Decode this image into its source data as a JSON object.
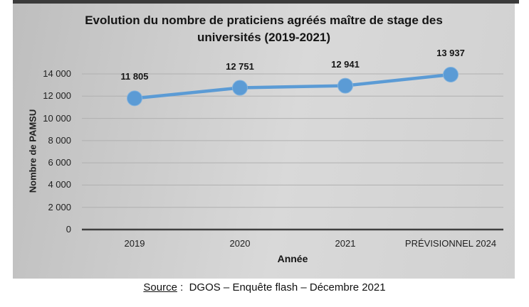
{
  "chart_data": {
    "type": "line",
    "title": "Evolution du nombre de praticiens agréés maître de stage des universités (2019-2021)",
    "categories": [
      "2019",
      "2020",
      "2021",
      "PRÉVISIONNEL 2024"
    ],
    "values": [
      11805,
      12751,
      12941,
      13937
    ],
    "data_labels": [
      "11 805",
      "12 751",
      "12 941",
      "13 937"
    ],
    "xlabel": "Année",
    "ylabel": "Nombre de PAMSU",
    "ylim": [
      0,
      14000
    ],
    "ytick_step": 2000,
    "ytick_labels": [
      "0",
      "2 000",
      "4 000",
      "6 000",
      "8 000",
      "10 000",
      "12 000",
      "14 000"
    ],
    "grid": true,
    "legend": "none",
    "colors": {
      "line": "#5b9bd5",
      "marker": "#5b9bd5",
      "marker_edge": "#84b4de",
      "gridline": "#b0b0b0",
      "axis": "#3f3f3f"
    }
  },
  "source": {
    "label": "Source",
    "separator": " :  ",
    "text": "DGOS – Enquête flash – Décembre 2021"
  }
}
